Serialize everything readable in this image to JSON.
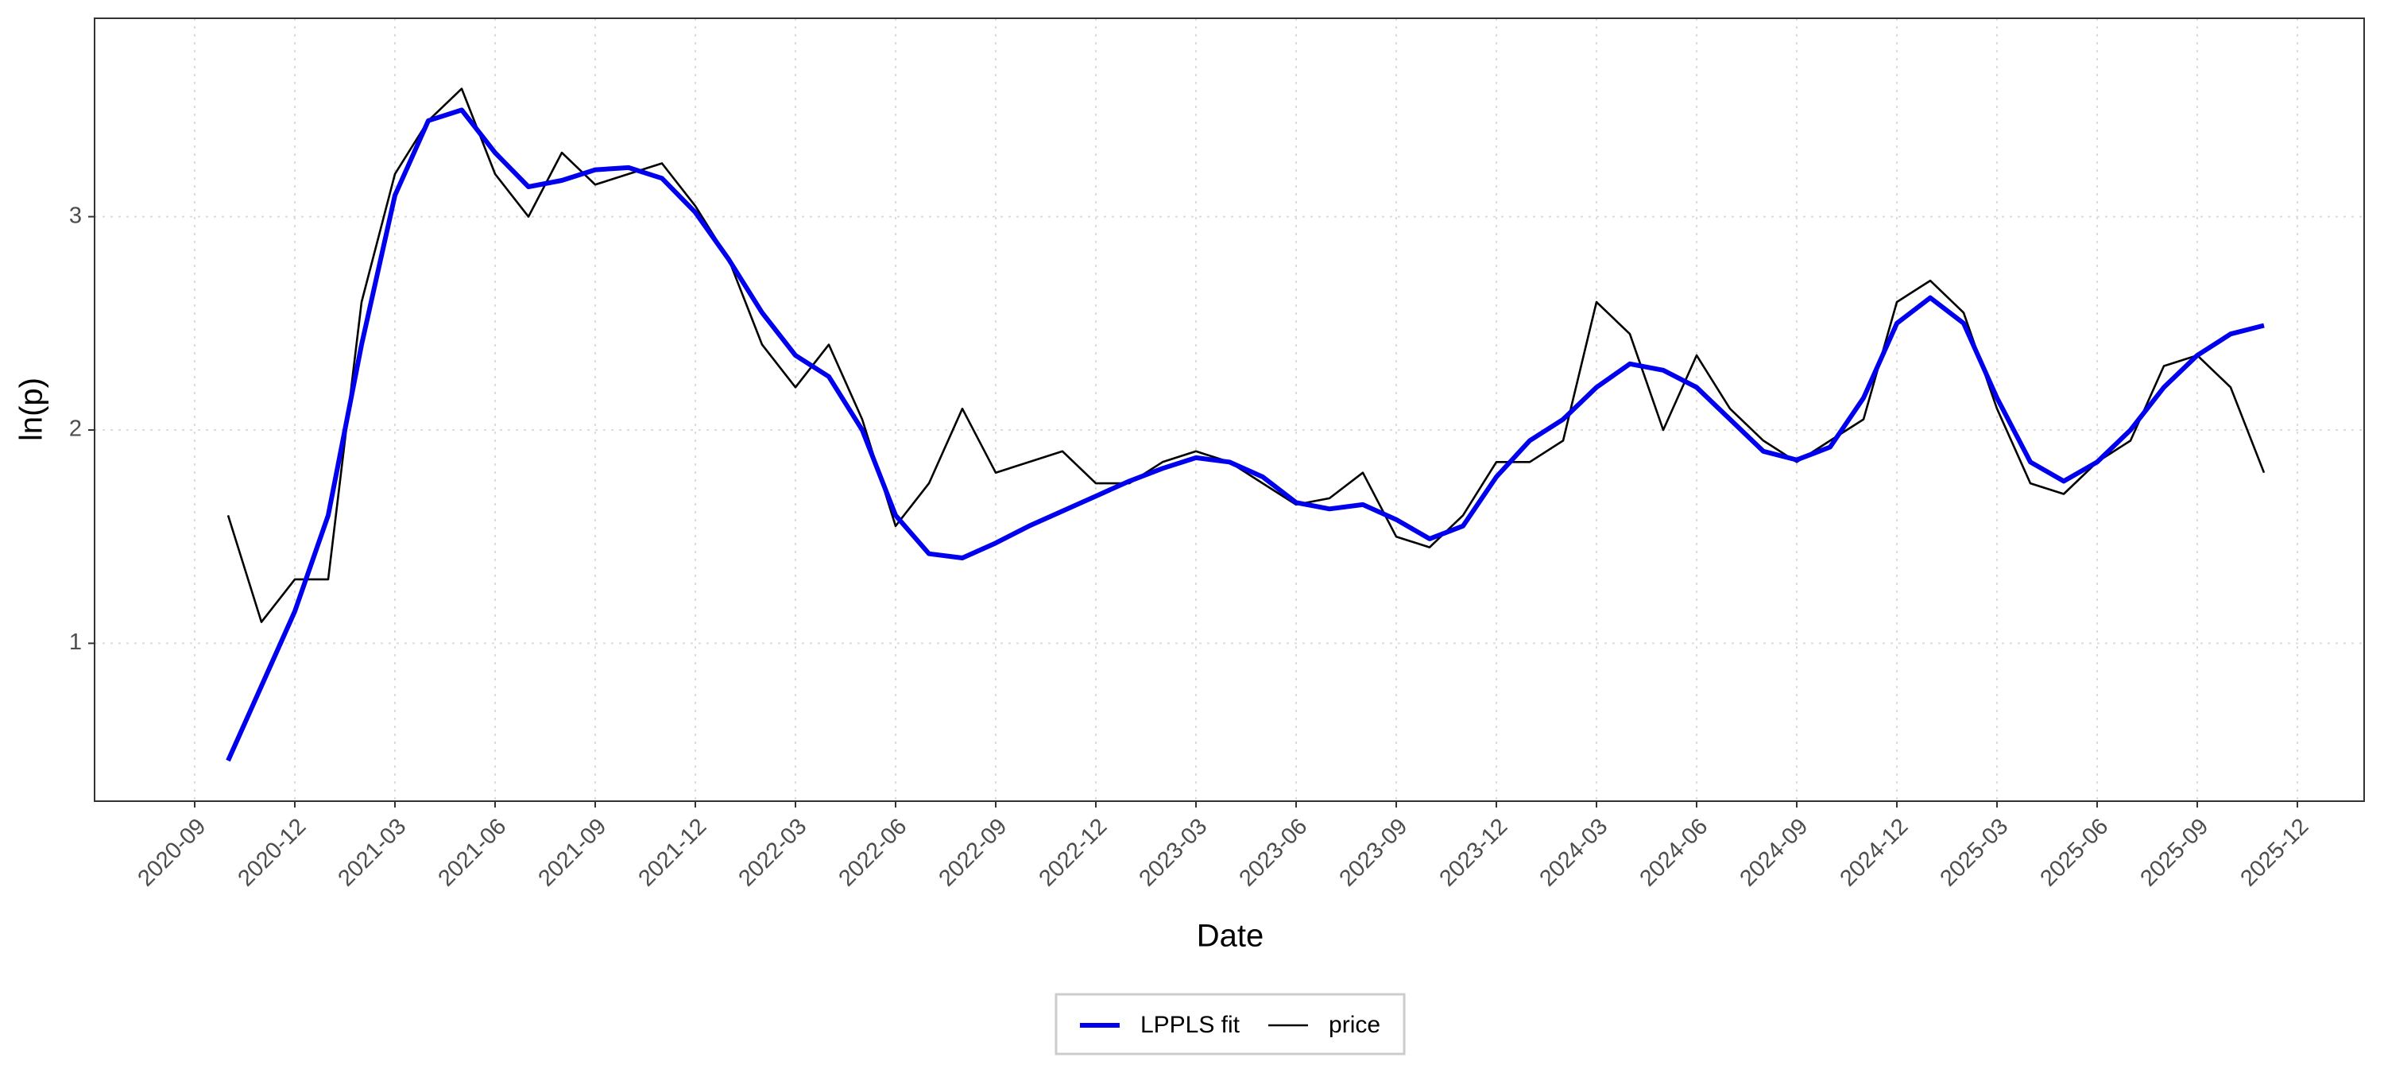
{
  "chart_data": {
    "type": "line",
    "xlabel": "Date",
    "ylabel": "ln(p)",
    "grid": true,
    "legend": "bottom",
    "x": [
      "2020-10",
      "2020-11",
      "2020-12",
      "2021-01",
      "2021-02",
      "2021-03",
      "2021-04",
      "2021-05",
      "2021-06",
      "2021-07",
      "2021-08",
      "2021-09",
      "2021-10",
      "2021-11",
      "2021-12",
      "2022-01",
      "2022-02",
      "2022-03",
      "2022-04",
      "2022-05",
      "2022-06",
      "2022-07",
      "2022-08",
      "2022-09",
      "2022-10",
      "2022-11",
      "2022-12",
      "2023-01",
      "2023-02",
      "2023-03",
      "2023-04",
      "2023-05",
      "2023-06",
      "2023-07",
      "2023-08",
      "2023-09",
      "2023-10",
      "2023-11",
      "2023-12",
      "2024-01",
      "2024-02",
      "2024-03",
      "2024-04",
      "2024-05",
      "2024-06",
      "2024-07",
      "2024-08",
      "2024-09",
      "2024-10",
      "2024-11",
      "2024-12",
      "2025-01",
      "2025-02",
      "2025-03",
      "2025-04",
      "2025-05",
      "2025-06",
      "2025-07",
      "2025-08",
      "2025-09",
      "2025-10",
      "2025-11"
    ],
    "series": [
      {
        "name": "LPPLS fit",
        "color": "#0000ee",
        "values": [
          0.45,
          0.8,
          1.15,
          1.6,
          2.4,
          3.1,
          3.45,
          3.5,
          3.3,
          3.14,
          3.17,
          3.22,
          3.23,
          3.18,
          3.02,
          2.8,
          2.55,
          2.35,
          2.25,
          2.0,
          1.6,
          1.42,
          1.4,
          1.47,
          1.55,
          1.62,
          1.69,
          1.76,
          1.82,
          1.87,
          1.85,
          1.78,
          1.66,
          1.63,
          1.65,
          1.58,
          1.49,
          1.55,
          1.78,
          1.95,
          2.05,
          2.2,
          2.31,
          2.28,
          2.2,
          2.05,
          1.9,
          1.86,
          1.92,
          2.15,
          2.5,
          2.62,
          2.5,
          2.15,
          1.85,
          1.76,
          1.85,
          2.0,
          2.2,
          2.35,
          2.45,
          2.49
        ]
      },
      {
        "name": "price",
        "color": "#000000",
        "values": [
          1.6,
          1.1,
          1.3,
          1.3,
          2.6,
          3.2,
          3.45,
          3.6,
          3.2,
          3.0,
          3.3,
          3.15,
          3.2,
          3.25,
          3.05,
          2.8,
          2.4,
          2.2,
          2.4,
          2.05,
          1.55,
          1.75,
          2.1,
          1.8,
          1.85,
          1.9,
          1.75,
          1.75,
          1.85,
          1.9,
          1.85,
          1.75,
          1.65,
          1.68,
          1.8,
          1.5,
          1.45,
          1.6,
          1.85,
          1.85,
          1.95,
          2.6,
          2.45,
          2.0,
          2.35,
          2.1,
          1.95,
          1.85,
          1.95,
          2.05,
          2.6,
          2.7,
          2.55,
          2.1,
          1.75,
          1.7,
          1.85,
          1.95,
          2.3,
          2.35,
          2.2,
          1.8
        ]
      }
    ],
    "xlim": [
      "2020-06",
      "2026-02"
    ],
    "xticks": [
      "2020-09",
      "2020-12",
      "2021-03",
      "2021-06",
      "2021-09",
      "2021-12",
      "2022-03",
      "2022-06",
      "2022-09",
      "2022-12",
      "2023-03",
      "2023-06",
      "2023-09",
      "2023-12",
      "2024-03",
      "2024-06",
      "2024-09",
      "2024-12",
      "2025-03",
      "2025-06",
      "2025-09",
      "2025-12"
    ],
    "ylim": [
      0.26,
      3.93
    ],
    "yticks": [
      1,
      2,
      3
    ]
  }
}
